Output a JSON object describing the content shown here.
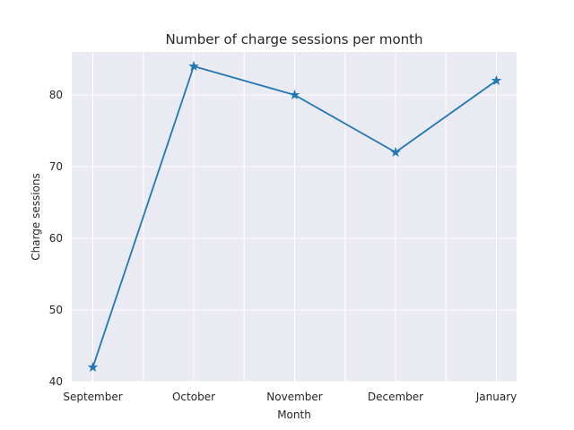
{
  "chart_data": {
    "type": "line",
    "title": "Number of charge sessions per month",
    "xlabel": "Month",
    "ylabel": "Charge sessions",
    "categories": [
      "September",
      "October",
      "November",
      "December",
      "January"
    ],
    "series": [
      {
        "values": [
          42,
          84,
          80,
          72,
          82
        ],
        "color": "#1f77b4",
        "marker": "star"
      }
    ],
    "ylim": [
      40,
      86
    ],
    "yticks": [
      40,
      50,
      60,
      70,
      80
    ],
    "grid": true,
    "legend": "none",
    "background": "#eaeaf2"
  }
}
